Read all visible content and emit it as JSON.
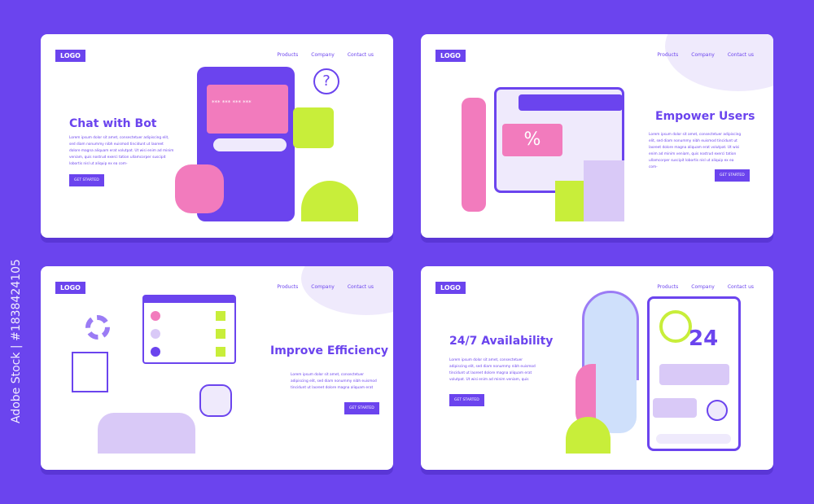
{
  "watermark": "Adobe Stock | #1838424105",
  "colors": {
    "background": "#6b44ee",
    "accent": "#6b44ee",
    "lime": "#c8ee3a",
    "pink": "#f27bbd"
  },
  "nav": {
    "logo": "LOGO",
    "products": "Products",
    "company": "Company",
    "contact": "Contact us"
  },
  "lorem": "Lorem ipsum dolor sit amet, consectetuer adipiscing elit, sed diam nonummy nibh euismod tincidunt ut laoreet dolore magna aliquam erat volutpat. Ut wisi enim ad minim veniam, quis nostrud exerci tation ullamcorper suscipit lobortis nisl ut aliquip ex ea com-",
  "cards": [
    {
      "title": "Chat with Bot",
      "cta": "GET STARTED",
      "password": "*** *** *** ***",
      "help": "?"
    },
    {
      "title": "Empower Users",
      "cta": "GET STARTED",
      "discount": "%"
    },
    {
      "title": "Improve Efficiency",
      "cta": "GET STARTED"
    },
    {
      "title": "24/7 Availability",
      "cta": "GET STARTED",
      "hours": "24"
    }
  ]
}
